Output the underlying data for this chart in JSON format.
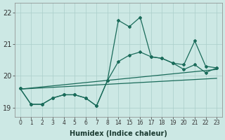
{
  "xlabel": "Humidex (Indice chaleur)",
  "bg_color": "#cce8e4",
  "line_color": "#1a6b5a",
  "grid_color": "#aaceca",
  "ylim": [
    18.7,
    22.3
  ],
  "series1_y": [
    19.6,
    19.1,
    19.1,
    19.3,
    19.4,
    19.4,
    19.3,
    19.05,
    19.85,
    21.75,
    21.55,
    21.85,
    20.6,
    20.55,
    20.4,
    20.35,
    21.1,
    20.3,
    20.25
  ],
  "series2_y": [
    19.6,
    19.1,
    19.1,
    19.3,
    19.4,
    19.4,
    19.3,
    19.05,
    19.85,
    20.45,
    20.65,
    20.75,
    20.6,
    20.55,
    20.4,
    20.2,
    20.35,
    20.1,
    20.25
  ],
  "line3_y": [
    19.58,
    20.2
  ],
  "line4_y": [
    19.58,
    19.92
  ],
  "xlabels": [
    "0",
    "1",
    "2",
    "3",
    "4",
    "5",
    "6",
    "7",
    "8",
    "14",
    "15",
    "16",
    "17",
    "18",
    "19",
    "20",
    "21",
    "22",
    "23"
  ],
  "yticks": [
    19,
    20,
    21,
    22
  ]
}
